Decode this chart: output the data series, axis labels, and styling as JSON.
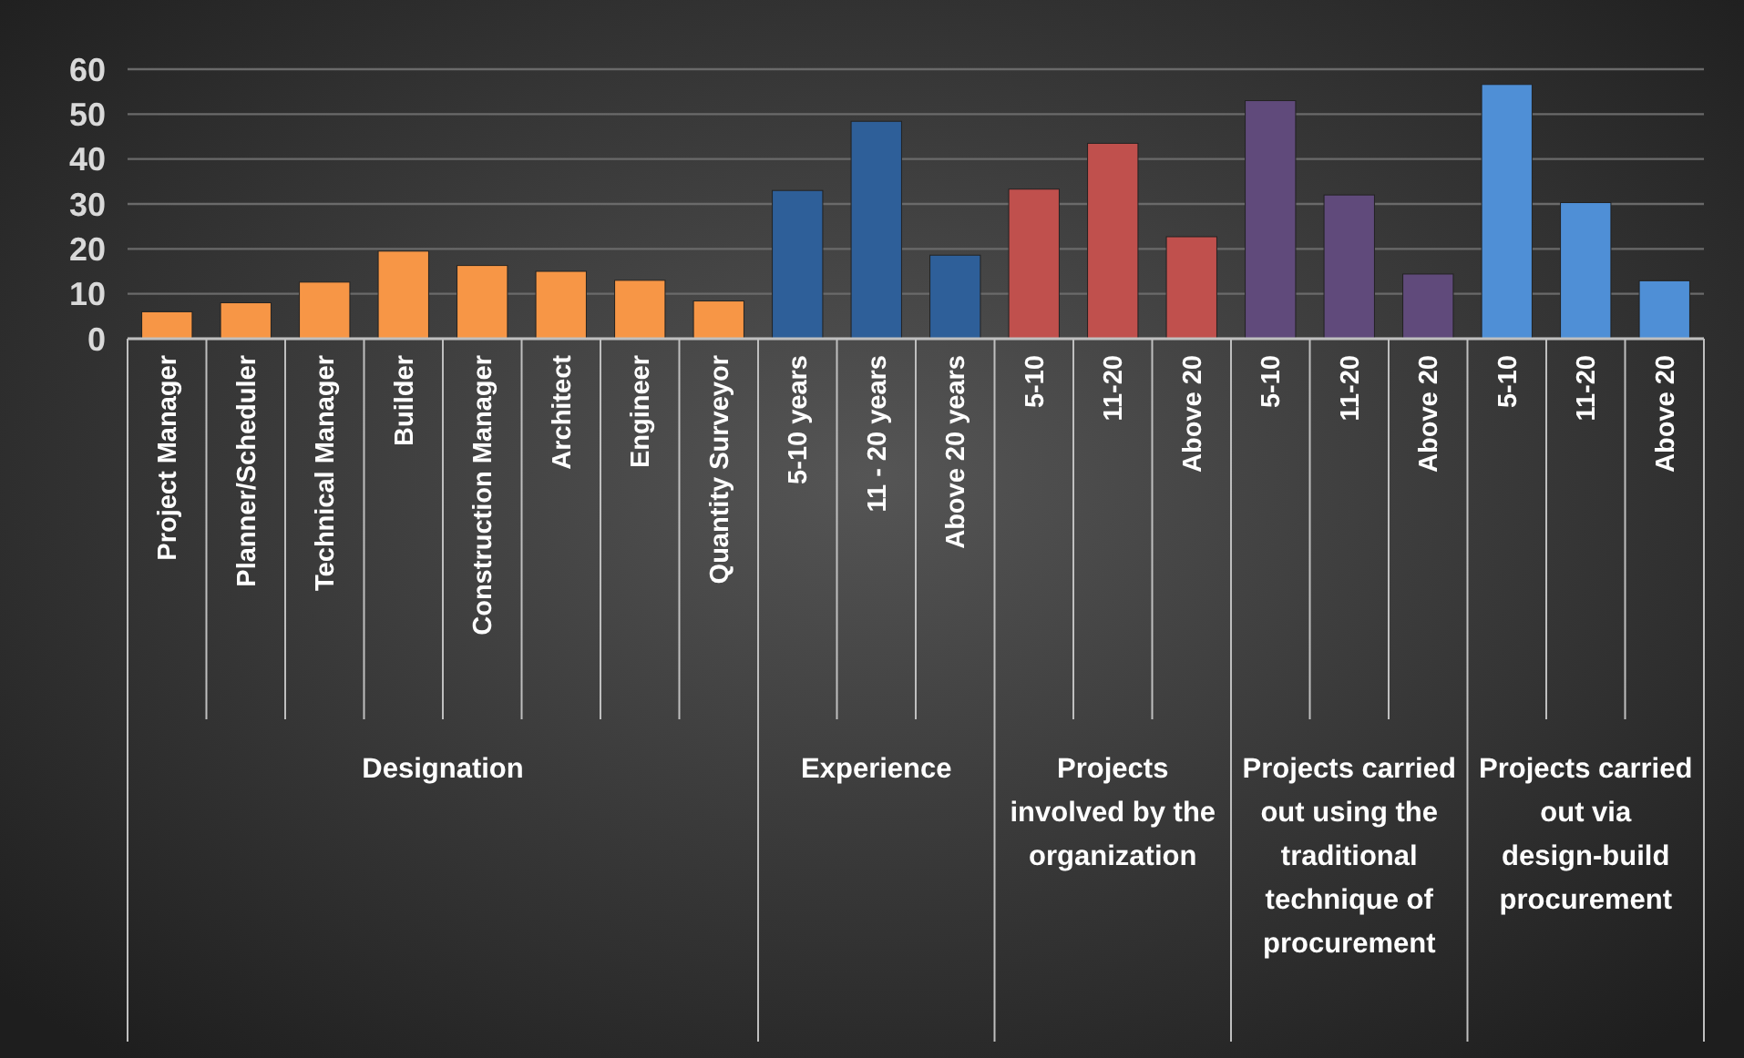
{
  "chart_data": {
    "type": "bar",
    "categories": [
      "Project Manager",
      "Planner/Scheduler",
      "Technical Manager",
      "Builder",
      "Construction Manager",
      "Architect",
      "Engineer",
      "Quantity Surveyor",
      "5-10 years",
      "11 - 20 years",
      "Above 20 years",
      "5-10",
      "11-20",
      "Above 20",
      "5-10",
      "11-20",
      "Above 20",
      "5-10",
      "11-20",
      "Above 20"
    ],
    "series": [
      {
        "name": "Designation",
        "color": "#f79646",
        "values": [
          6,
          8,
          12.6,
          19.5,
          16.3,
          15,
          13,
          8.4,
          null,
          null,
          null,
          null,
          null,
          null,
          null,
          null,
          null,
          null,
          null,
          null
        ]
      },
      {
        "name": "Experience",
        "color": "#2e5f99",
        "values": [
          null,
          null,
          null,
          null,
          null,
          null,
          null,
          null,
          33,
          48.4,
          18.6,
          null,
          null,
          null,
          null,
          null,
          null,
          null,
          null,
          null
        ]
      },
      {
        "name": "Projects involved by the organization",
        "color": "#c0504d",
        "values": [
          null,
          null,
          null,
          null,
          null,
          null,
          null,
          null,
          null,
          null,
          null,
          33.3,
          43.5,
          22.7,
          null,
          null,
          null,
          null,
          null,
          null
        ]
      },
      {
        "name": "Projects carried out using the traditional technique of procurement",
        "color": "#604a7b",
        "values": [
          null,
          null,
          null,
          null,
          null,
          null,
          null,
          null,
          null,
          null,
          null,
          null,
          null,
          null,
          53,
          32,
          14.4,
          null,
          null,
          null
        ]
      },
      {
        "name": "Projects carried out via design-build procurement",
        "color": "#4f8fd6",
        "values": [
          null,
          null,
          null,
          null,
          null,
          null,
          null,
          null,
          null,
          null,
          null,
          null,
          null,
          null,
          null,
          null,
          null,
          56.6,
          30.3,
          12.9
        ]
      }
    ],
    "ylim": [
      0,
      60
    ],
    "yticks": [
      0,
      10,
      20,
      30,
      40,
      50,
      60
    ],
    "grid": "y"
  }
}
